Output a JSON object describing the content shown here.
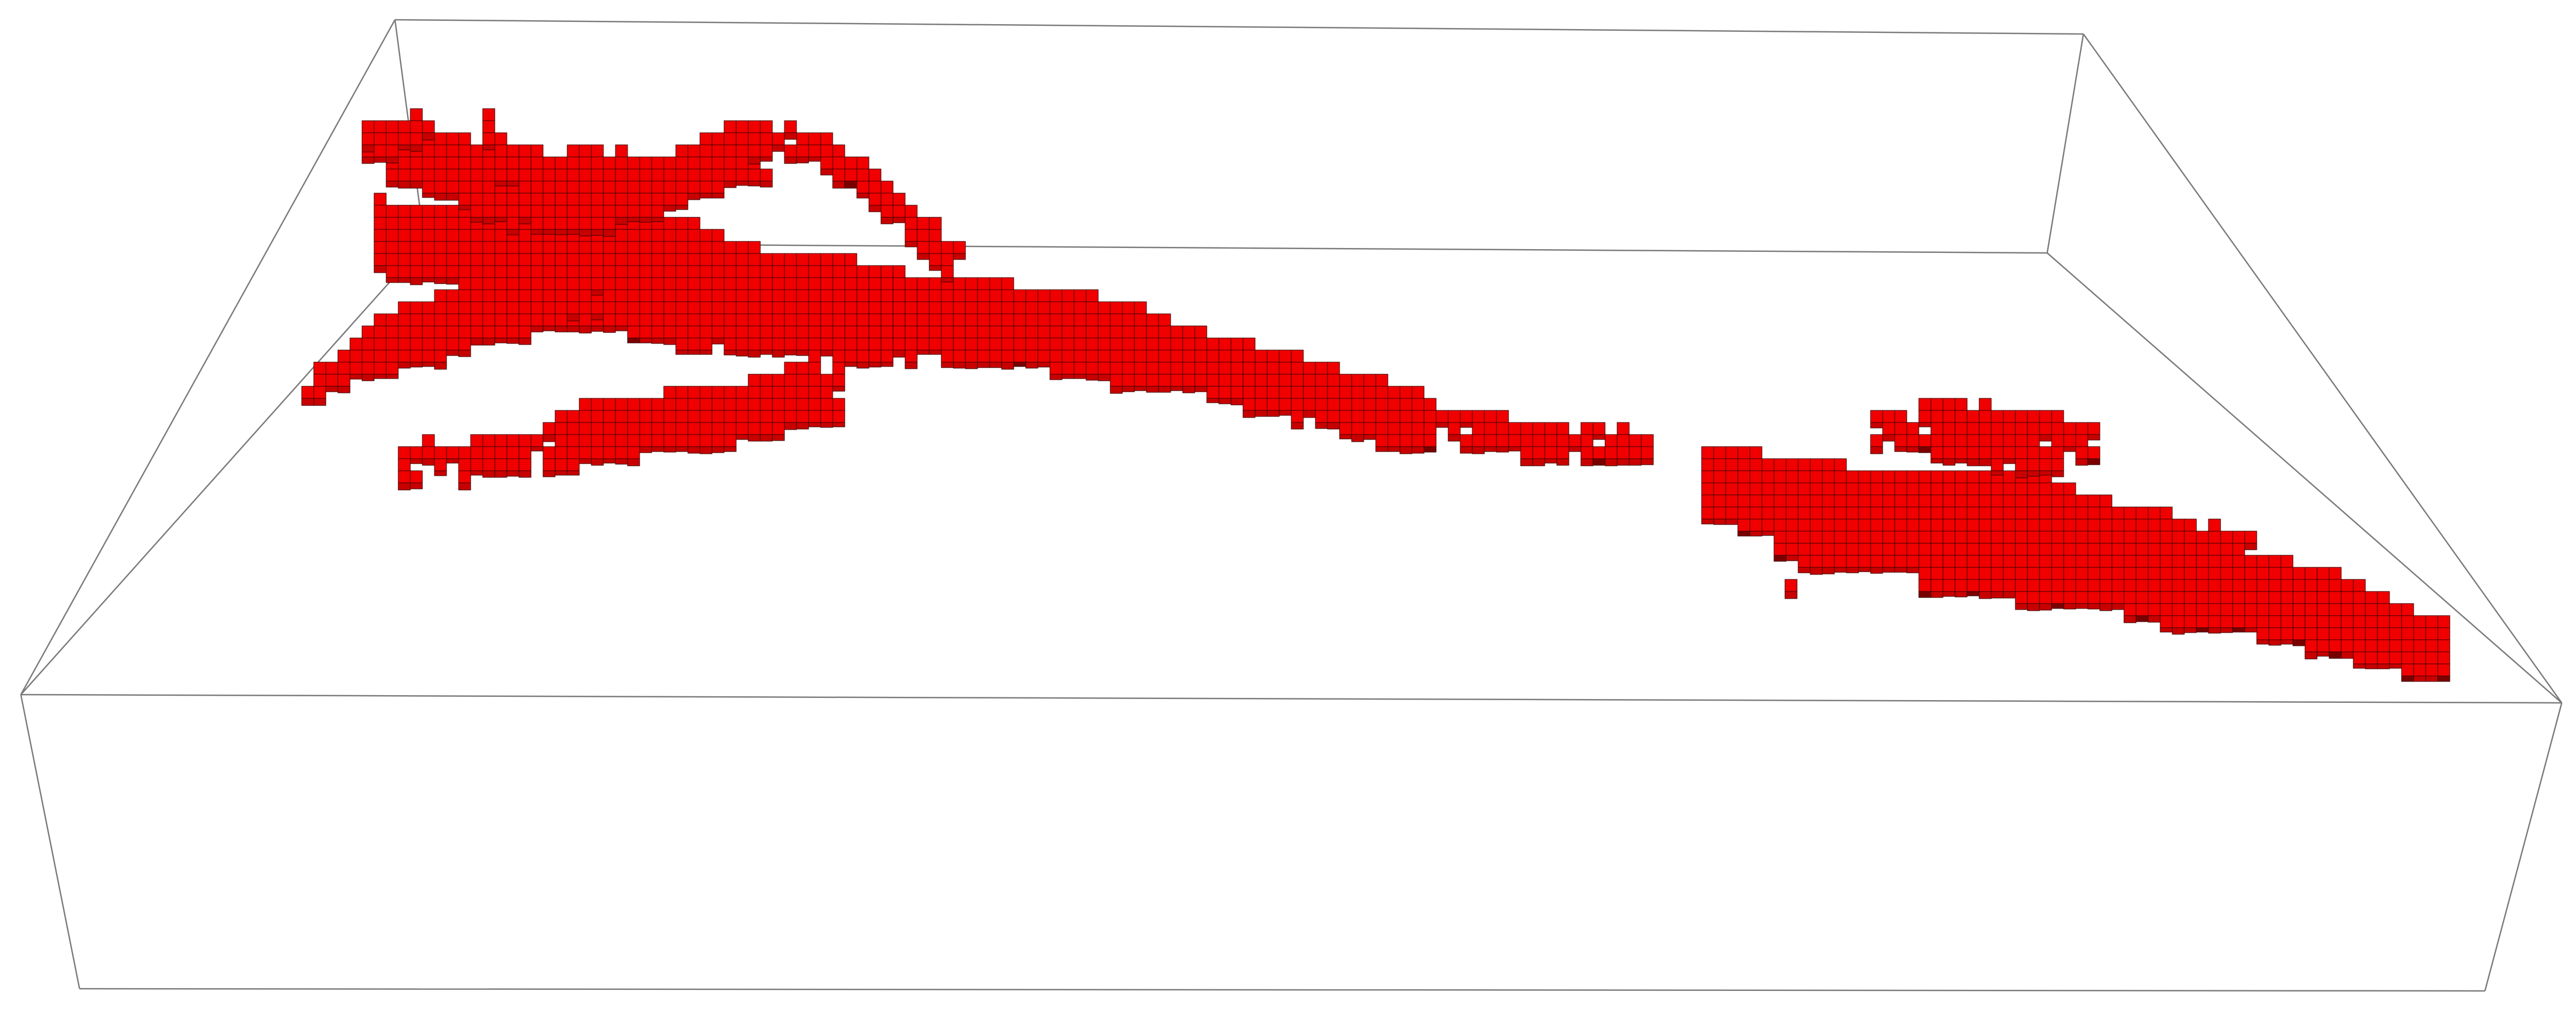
{
  "scene": {
    "background_color": "#ffffff",
    "bounding_box_stroke": "#7a7a7a",
    "voxel_fill_top": "#f00000",
    "voxel_fill_side": "#c80000",
    "voxel_fill_dark": "#7a0000",
    "voxel_edge": "#330000"
  },
  "objects": [
    {
      "name": "branching-voxel-structure",
      "kind": "voxel-cluster"
    },
    {
      "name": "elongated-voxel-body",
      "kind": "voxel-cluster"
    },
    {
      "name": "isolated-voxel",
      "kind": "voxel"
    }
  ]
}
